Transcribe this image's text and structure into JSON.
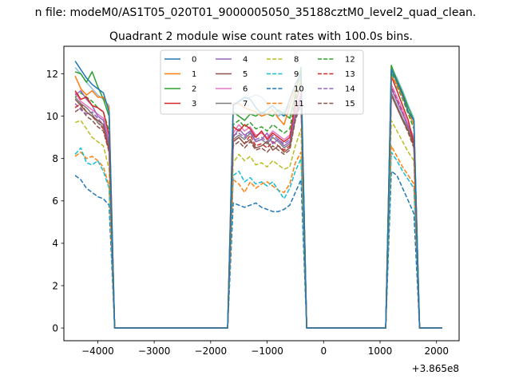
{
  "chart_data": {
    "type": "line",
    "suptitle": "n file: modeM0/AS1T05_020T01_9000005050_35188cztM0_level2_quad_clean.",
    "title": "Quadrant 2 module wise count rates with 100.0s bins.",
    "xlabel": "",
    "ylabel": "",
    "offset_label": "+3.865e8",
    "xlim": [
      -4600,
      2400
    ],
    "ylim": [
      -0.6,
      13.3
    ],
    "xticks": [
      -4000,
      -3000,
      -2000,
      -1000,
      0,
      1000,
      2000
    ],
    "xtick_labels": [
      "−4000",
      "−3000",
      "−2000",
      "−1000",
      "0",
      "1000",
      "2000"
    ],
    "yticks": [
      0,
      2,
      4,
      6,
      8,
      10,
      12
    ],
    "ytick_labels": [
      "0",
      "2",
      "4",
      "6",
      "8",
      "10",
      "12"
    ],
    "legend_position": "upper-center",
    "x": [
      -4400,
      -4300,
      -4200,
      -4100,
      -4000,
      -3900,
      -3800,
      -3700,
      -3600,
      -3500,
      -3400,
      -3300,
      -3200,
      -3100,
      -3000,
      -2900,
      -2800,
      -2700,
      -2600,
      -2500,
      -2400,
      -2300,
      -2200,
      -2100,
      -2000,
      -1900,
      -1800,
      -1700,
      -1600,
      -1500,
      -1400,
      -1300,
      -1200,
      -1100,
      -1000,
      -900,
      -800,
      -700,
      -600,
      -500,
      -400,
      -300,
      -200,
      -100,
      0,
      100,
      200,
      300,
      400,
      500,
      600,
      700,
      800,
      900,
      1000,
      1100,
      1200,
      1300,
      1400,
      1500,
      1600,
      1700,
      1800,
      1900,
      2000,
      2100
    ],
    "on_windows": [
      [
        0,
        6
      ],
      [
        28,
        40
      ],
      [
        56,
        65
      ]
    ],
    "series": [
      {
        "name": "0",
        "color": "#1f77b4",
        "dash": "solid",
        "on": [
          12.6,
          12.2,
          11.8,
          11.5,
          11.3,
          11.1,
          10.2,
          10.5,
          10.7,
          10.9,
          10.8,
          10.4,
          10.1,
          10.3,
          10.5,
          10.2,
          10.0,
          10.8,
          11.5,
          12.0,
          12.2,
          11.6,
          11.0,
          10.2,
          9.8
        ]
      },
      {
        "name": "1",
        "color": "#ff7f0e",
        "dash": "solid",
        "on": [
          11.9,
          11.3,
          11.0,
          11.2,
          10.9,
          10.9,
          10.4,
          10.6,
          10.6,
          10.4,
          10.3,
          10.2,
          10.0,
          10.1,
          10.3,
          9.9,
          9.6,
          10.5,
          11.3,
          11.8,
          11.9,
          11.5,
          10.9,
          10.2,
          9.6
        ]
      },
      {
        "name": "2",
        "color": "#2ca02c",
        "dash": "solid",
        "on": [
          12.1,
          12.0,
          11.6,
          12.1,
          11.4,
          10.8,
          10.0,
          10.2,
          10.0,
          9.8,
          10.1,
          10.0,
          10.2,
          10.1,
          10.0,
          10.3,
          10.1,
          9.9,
          11.0,
          12.3,
          12.4,
          11.7,
          11.1,
          10.4,
          9.8
        ]
      },
      {
        "name": "3",
        "color": "#d62728",
        "dash": "solid",
        "on": [
          11.2,
          10.8,
          10.9,
          10.5,
          10.4,
          10.2,
          9.1,
          9.5,
          9.3,
          9.6,
          9.4,
          9.0,
          9.3,
          8.9,
          9.2,
          9.0,
          8.8,
          9.0,
          10.6,
          11.5,
          11.9,
          11.2,
          10.5,
          9.8,
          8.7
        ]
      },
      {
        "name": "4",
        "color": "#9467bd",
        "dash": "solid",
        "on": [
          11.0,
          11.2,
          10.8,
          10.5,
          10.0,
          9.8,
          8.7,
          9.0,
          9.4,
          9.1,
          9.3,
          8.8,
          8.9,
          9.2,
          8.7,
          8.9,
          8.6,
          8.8,
          10.1,
          10.9,
          11.3,
          10.7,
          10.1,
          9.5,
          8.9
        ]
      },
      {
        "name": "5",
        "color": "#8c564b",
        "dash": "solid",
        "on": [
          10.8,
          10.5,
          10.2,
          10.0,
          9.8,
          9.6,
          8.5,
          8.8,
          9.0,
          8.7,
          8.9,
          8.5,
          8.6,
          8.8,
          8.4,
          8.6,
          8.3,
          8.5,
          9.9,
          10.8,
          11.0,
          10.4,
          9.8,
          9.3,
          8.6
        ]
      },
      {
        "name": "6",
        "color": "#e377c2",
        "dash": "solid",
        "on": [
          11.1,
          10.7,
          10.5,
          10.3,
          10.1,
          9.9,
          8.9,
          9.2,
          9.6,
          9.3,
          9.5,
          9.1,
          9.2,
          9.0,
          9.3,
          9.1,
          8.9,
          9.1,
          10.3,
          11.1,
          11.5,
          10.9,
          10.3,
          9.6,
          9.0
        ]
      },
      {
        "name": "7",
        "color": "#7f7f7f",
        "dash": "solid",
        "on": [
          10.9,
          10.6,
          10.4,
          10.1,
          9.7,
          9.5,
          8.6,
          8.9,
          9.1,
          8.9,
          9.2,
          8.8,
          8.9,
          8.7,
          9.0,
          8.8,
          8.5,
          8.7,
          10.0,
          10.7,
          11.1,
          10.5,
          9.9,
          9.4,
          8.7
        ]
      },
      {
        "name": "8",
        "color": "#bcbd22",
        "dash": "dash",
        "on": [
          9.7,
          9.8,
          9.4,
          9.0,
          8.8,
          8.6,
          7.5,
          7.8,
          8.2,
          7.9,
          8.1,
          7.7,
          7.8,
          7.6,
          7.9,
          7.7,
          7.5,
          7.6,
          8.6,
          9.4,
          9.8,
          9.3,
          8.8,
          8.3,
          7.9
        ]
      },
      {
        "name": "9",
        "color": "#17becf",
        "dash": "dash",
        "on": [
          8.2,
          8.5,
          7.8,
          7.7,
          7.9,
          7.4,
          6.6,
          7.2,
          7.4,
          6.9,
          7.1,
          6.8,
          6.9,
          6.7,
          6.9,
          6.5,
          6.1,
          6.6,
          7.4,
          8.0,
          8.3,
          7.9,
          7.4,
          7.0,
          6.6
        ]
      },
      {
        "name": "10",
        "color": "#1f77b4",
        "dash": "dash",
        "on": [
          7.2,
          7.0,
          6.6,
          6.4,
          6.2,
          6.1,
          5.8,
          5.9,
          5.8,
          5.7,
          5.8,
          5.9,
          5.7,
          5.6,
          5.5,
          5.5,
          5.6,
          5.8,
          6.4,
          7.0,
          7.4,
          7.2,
          6.6,
          6.0,
          5.4
        ]
      },
      {
        "name": "11",
        "color": "#ff7f0e",
        "dash": "dash",
        "on": [
          8.1,
          8.3,
          8.0,
          8.1,
          7.9,
          7.6,
          6.7,
          7.0,
          6.8,
          6.4,
          6.9,
          6.6,
          6.8,
          6.9,
          6.7,
          6.5,
          6.4,
          6.8,
          7.8,
          8.3,
          8.6,
          8.1,
          7.6,
          7.2,
          6.8
        ]
      },
      {
        "name": "12",
        "color": "#2ca02c",
        "dash": "dash",
        "on": [
          10.9,
          11.1,
          10.9,
          10.7,
          10.4,
          10.2,
          9.3,
          9.6,
          9.8,
          9.5,
          9.7,
          9.4,
          9.5,
          9.3,
          9.6,
          9.4,
          9.2,
          9.4,
          10.8,
          11.7,
          12.1,
          11.4,
          10.8,
          10.1,
          9.4
        ]
      },
      {
        "name": "13",
        "color": "#d62728",
        "dash": "dash",
        "on": [
          10.4,
          10.6,
          10.2,
          10.0,
          9.7,
          9.4,
          8.4,
          8.8,
          9.0,
          8.7,
          9.1,
          8.6,
          8.7,
          8.5,
          8.8,
          8.6,
          8.4,
          8.6,
          10.0,
          11.0,
          11.4,
          10.8,
          10.2,
          9.5,
          8.8
        ]
      },
      {
        "name": "14",
        "color": "#9467bd",
        "dash": "dash",
        "on": [
          10.6,
          10.3,
          10.1,
          10.2,
          9.9,
          9.6,
          8.8,
          9.1,
          9.2,
          9.0,
          9.3,
          8.9,
          9.0,
          8.8,
          9.1,
          8.9,
          8.7,
          8.9,
          10.2,
          11.0,
          11.3,
          10.7,
          10.1,
          9.5,
          8.9
        ]
      },
      {
        "name": "15",
        "color": "#8c564b",
        "dash": "dash",
        "on": [
          10.2,
          10.4,
          10.0,
          9.8,
          9.5,
          9.3,
          8.3,
          8.6,
          8.8,
          8.5,
          8.8,
          8.4,
          8.5,
          8.3,
          8.6,
          8.4,
          8.2,
          8.4,
          9.8,
          10.6,
          11.0,
          10.4,
          9.8,
          9.2,
          8.5
        ]
      },
      {
        "name": "",
        "color": "#8ebfdf",
        "dash": "solid",
        "on": [
          12.3,
          12.0,
          11.6,
          11.3,
          11.0,
          10.8,
          10.5,
          10.6,
          10.7,
          10.8,
          10.9,
          11.0,
          10.9,
          10.6,
          10.3,
          10.0,
          10.2,
          10.5,
          11.2,
          12.0,
          12.3,
          11.8,
          11.2,
          10.5,
          9.9
        ]
      }
    ]
  }
}
